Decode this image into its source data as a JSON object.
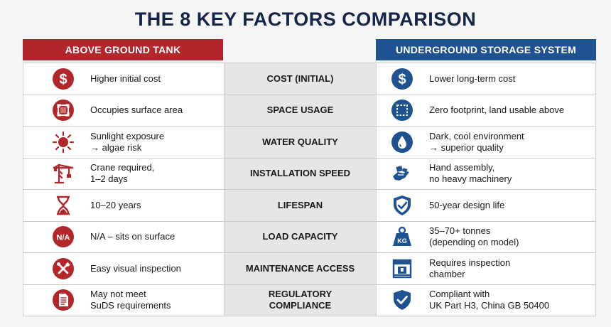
{
  "title": "THE 8 KEY FACTORS COMPARISON",
  "headers": {
    "left": "ABOVE GROUND TANK",
    "right": "UNDERGROUND STORAGE SYSTEM"
  },
  "colors": {
    "title": "#15254a",
    "left_accent": "#b3262a",
    "right_accent": "#1e5290"
  },
  "rows": [
    {
      "factor": "COST (INITIAL)",
      "left": {
        "icon": "dollar-icon",
        "text": "Higher initial cost"
      },
      "right": {
        "icon": "dollar-icon",
        "text": "Lower long-term cost"
      }
    },
    {
      "factor": "SPACE USAGE",
      "left": {
        "icon": "surface-area-icon",
        "text": "Occupies surface area"
      },
      "right": {
        "icon": "zero-footprint-icon",
        "text": "Zero footprint, land usable above"
      }
    },
    {
      "factor": "WATER QUALITY",
      "left": {
        "icon": "sun-icon",
        "text": "Sunlight exposure\n→ algae risk"
      },
      "right": {
        "icon": "water-drop-icon",
        "text": "Dark, cool environment\n→ superior quality"
      }
    },
    {
      "factor": "INSTALLATION SPEED",
      "left": {
        "icon": "crane-icon",
        "text": "Crane required,\n1–2 days"
      },
      "right": {
        "icon": "hand-assembly-icon",
        "text": "Hand assembly,\nno heavy machinery"
      }
    },
    {
      "factor": "LIFESPAN",
      "left": {
        "icon": "hourglass-icon",
        "text": "10–20 years"
      },
      "right": {
        "icon": "shield-check-icon",
        "text": "50-year design life"
      }
    },
    {
      "factor": "LOAD CAPACITY",
      "left": {
        "icon": "na-icon",
        "icon_label": "N/A",
        "text": "N/A – sits on surface"
      },
      "right": {
        "icon": "weight-icon",
        "icon_label": "KG",
        "text": "35–70+ tonnes\n(depending on model)"
      }
    },
    {
      "factor": "MAINTENANCE ACCESS",
      "left": {
        "icon": "tools-icon",
        "text": "Easy visual inspection"
      },
      "right": {
        "icon": "inspection-chamber-icon",
        "text": "Requires inspection\nchamber"
      }
    },
    {
      "factor": "REGULATORY\nCOMPLIANCE",
      "left": {
        "icon": "document-icon",
        "text": "May not meet\nSuDS requirements"
      },
      "right": {
        "icon": "shield-check-icon",
        "text": "Compliant with\nUK Part H3, China GB 50400"
      }
    }
  ]
}
